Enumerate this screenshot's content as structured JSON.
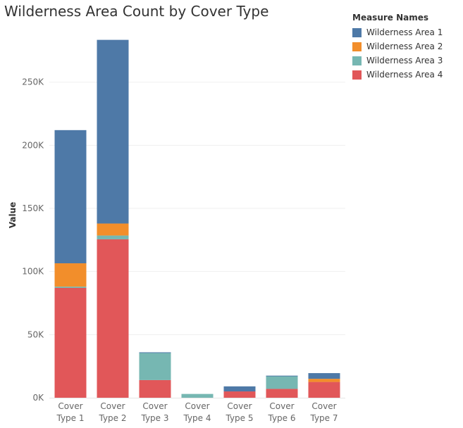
{
  "chart_data": {
    "type": "bar",
    "stacked": true,
    "title": "Wilderness Area Count by Cover Type",
    "ylabel": "Value",
    "xlabel": "",
    "ylim": [
      0,
      295000
    ],
    "yticks": [
      0,
      50000,
      100000,
      150000,
      200000,
      250000
    ],
    "ytick_labels": [
      "0K",
      "50K",
      "100K",
      "150K",
      "200K",
      "250K"
    ],
    "grid": true,
    "legend_title": "Measure Names",
    "legend_position": "top-right",
    "categories": [
      [
        "Cover",
        "Type 1"
      ],
      [
        "Cover",
        "Type 2"
      ],
      [
        "Cover",
        "Type 3"
      ],
      [
        "Cover",
        "Type 4"
      ],
      [
        "Cover",
        "Type 5"
      ],
      [
        "Cover",
        "Type 6"
      ],
      [
        "Cover",
        "Type 7"
      ]
    ],
    "series": [
      {
        "name": "Wilderness Area 4",
        "color": "#E15759",
        "values": [
          87000,
          125500,
          14000,
          0,
          5000,
          7000,
          12500
        ]
      },
      {
        "name": "Wilderness Area 3",
        "color": "#76B7B2",
        "values": [
          1000,
          3000,
          21500,
          3000,
          0,
          10000,
          0
        ]
      },
      {
        "name": "Wilderness Area 2",
        "color": "#F28E2B",
        "values": [
          18500,
          9500,
          0,
          0,
          0,
          0,
          2500
        ]
      },
      {
        "name": "Wilderness Area 1",
        "color": "#4E79A7",
        "values": [
          105500,
          145500,
          500,
          0,
          4000,
          500,
          4500
        ]
      }
    ],
    "legend_order": [
      "Wilderness Area 1",
      "Wilderness Area 2",
      "Wilderness Area 3",
      "Wilderness Area 4"
    ]
  }
}
